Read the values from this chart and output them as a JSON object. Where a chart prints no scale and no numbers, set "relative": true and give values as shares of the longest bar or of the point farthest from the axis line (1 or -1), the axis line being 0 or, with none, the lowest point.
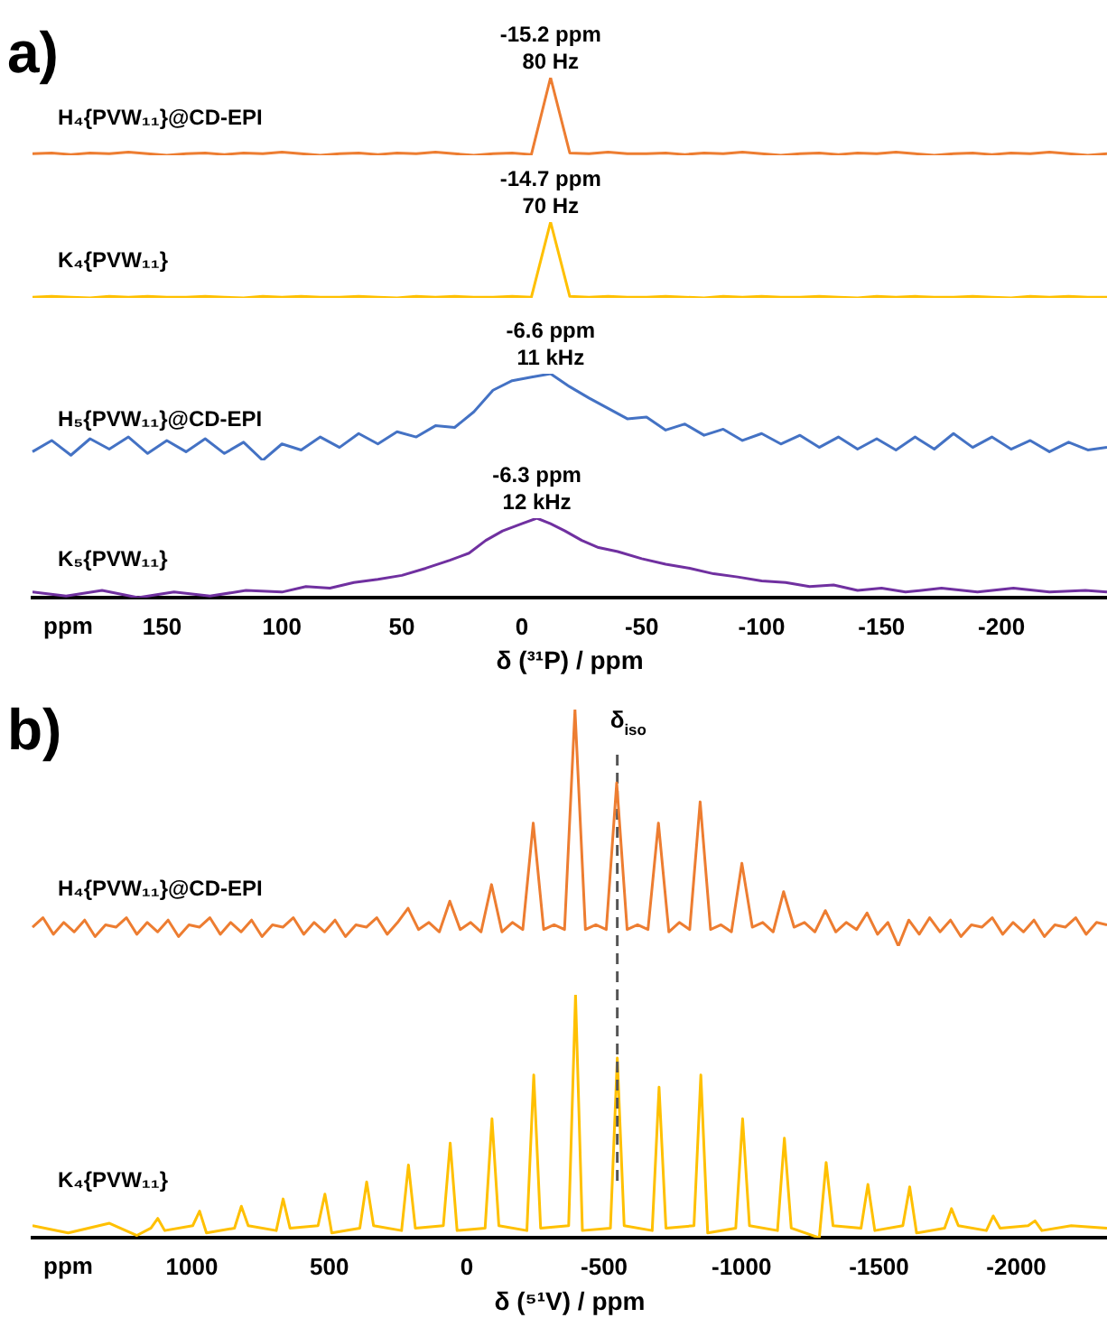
{
  "chart_data": [
    {
      "type": "line",
      "title": "a)",
      "relative": true,
      "tick_labels": false,
      "annotations": [
        "-15.2 ppm",
        "80 Hz"
      ],
      "categories": [
        null,
        null,
        null,
        null,
        null,
        null,
        null,
        null,
        null,
        null,
        null,
        null,
        null,
        null,
        null,
        null,
        null,
        null,
        null,
        null,
        null,
        null,
        null,
        null,
        null,
        null,
        null,
        null,
        null,
        null,
        null,
        null,
        null,
        null,
        null,
        null,
        null,
        null,
        null,
        null,
        null,
        null,
        null,
        null,
        null,
        null,
        null,
        null,
        null,
        null,
        null,
        null,
        null,
        null,
        null,
        null,
        null
      ],
      "series": [
        {
          "name": "H₄{PVW₁₁}@CD-EPI",
          "color": "#ed7d31",
          "values": [
            0.02,
            0.03,
            0.01,
            0.03,
            0.02,
            0.04,
            0.02,
            0,
            0.02,
            0.03,
            0.01,
            0.03,
            0.02,
            0.04,
            0.02,
            0,
            0.02,
            0.03,
            0.01,
            0.03,
            0.02,
            0.04,
            0.02,
            0,
            0.02,
            0.03,
            0.01,
            1,
            0.03,
            0.02,
            0.04,
            0.02,
            0.02,
            0.03,
            0.01,
            0.03,
            0.02,
            0.04,
            0.02,
            0,
            0.02,
            0.03,
            0.01,
            0.03,
            0.02,
            0.04,
            0.02,
            0,
            0.02,
            0.03,
            0.01,
            0.03,
            0.02,
            0.04,
            0.02,
            0,
            0.02
          ]
        }
      ]
    },
    {
      "type": "line",
      "relative": true,
      "tick_labels": false,
      "annotations": [
        "-14.7 ppm",
        "70 Hz"
      ],
      "categories": [
        null,
        null,
        null,
        null,
        null,
        null,
        null,
        null,
        null,
        null,
        null,
        null,
        null,
        null,
        null,
        null,
        null,
        null,
        null,
        null,
        null,
        null,
        null,
        null,
        null,
        null,
        null,
        null,
        null,
        null,
        null,
        null,
        null,
        null,
        null,
        null,
        null,
        null,
        null,
        null,
        null,
        null,
        null,
        null,
        null,
        null,
        null,
        null,
        null,
        null,
        null,
        null,
        null,
        null,
        null,
        null,
        null
      ],
      "series": [
        {
          "name": "K₄{PVW₁₁}",
          "color": "#ffc000",
          "values": [
            0.01,
            0.02,
            0.01,
            0,
            0.02,
            0.01,
            0.02,
            0.01,
            0.01,
            0.02,
            0.01,
            0,
            0.02,
            0.01,
            0.02,
            0.01,
            0.01,
            0.02,
            0.01,
            0,
            0.02,
            0.01,
            0.02,
            0.01,
            0.01,
            0.02,
            0.01,
            1,
            0.02,
            0.01,
            0.02,
            0.01,
            0.01,
            0.02,
            0.01,
            0,
            0.02,
            0.01,
            0.02,
            0.01,
            0.01,
            0.02,
            0.01,
            0,
            0.02,
            0.01,
            0.02,
            0.01,
            0.01,
            0.02,
            0.01,
            0,
            0.02,
            0.01,
            0.02,
            0.01,
            0.01
          ]
        }
      ]
    },
    {
      "type": "line",
      "relative": true,
      "tick_labels": false,
      "annotations": [
        "-6.6 ppm",
        "11 kHz"
      ],
      "categories": [
        null,
        null,
        null,
        null,
        null,
        null,
        null,
        null,
        null,
        null,
        null,
        null,
        null,
        null,
        null,
        null,
        null,
        null,
        null,
        null,
        null,
        null,
        null,
        null,
        null,
        null,
        null,
        null,
        null,
        null,
        null,
        null,
        null,
        null,
        null,
        null,
        null,
        null,
        null,
        null,
        null,
        null,
        null,
        null,
        null,
        null,
        null,
        null,
        null,
        null,
        null,
        null,
        null,
        null,
        null,
        null,
        null
      ],
      "series": [
        {
          "name": "H₅{PVW₁₁}@CD-EPI",
          "color": "#4472c4",
          "values": [
            0.1,
            0.23,
            0.06,
            0.25,
            0.13,
            0.27,
            0.08,
            0.23,
            0.1,
            0.25,
            0.08,
            0.21,
            0,
            0.19,
            0.12,
            0.27,
            0.15,
            0.31,
            0.19,
            0.33,
            0.27,
            0.4,
            0.38,
            0.56,
            0.81,
            0.92,
            0.96,
            1,
            0.85,
            0.72,
            0.6,
            0.48,
            0.5,
            0.35,
            0.42,
            0.29,
            0.36,
            0.23,
            0.31,
            0.19,
            0.29,
            0.15,
            0.27,
            0.13,
            0.25,
            0.12,
            0.27,
            0.13,
            0.31,
            0.15,
            0.27,
            0.13,
            0.23,
            0.1,
            0.21,
            0.12,
            0.15
          ]
        }
      ]
    },
    {
      "type": "line",
      "relative": true,
      "xlim": [
        204,
        -244
      ],
      "xticks": [
        150,
        100,
        50,
        0,
        -50,
        -100,
        -150,
        -200
      ],
      "xlabel": "δ (³¹P) / ppm",
      "annotations": [
        {
          "text": "-6.3 ppm",
          "x": -6.3,
          "y": 1
        },
        {
          "text": "12 kHz",
          "x": -6.3,
          "y": 1
        },
        "ppm"
      ],
      "series": [
        {
          "name": "K₅{PVW₁₁}",
          "color": "#7030a0",
          "x": [
            204,
            190,
            175,
            160,
            145,
            130,
            115,
            100,
            90,
            80,
            70,
            60,
            50,
            40,
            30,
            22,
            15,
            8,
            0,
            -6.3,
            -12,
            -18,
            -25,
            -32,
            -40,
            -50,
            -60,
            -70,
            -80,
            -90,
            -100,
            -110,
            -120,
            -130,
            -140,
            -150,
            -160,
            -175,
            -190,
            -205,
            -220,
            -235,
            -244
          ],
          "values": [
            0.07,
            0.02,
            0.09,
            0,
            0.07,
            0.02,
            0.09,
            0.07,
            0.14,
            0.12,
            0.19,
            0.23,
            0.28,
            0.37,
            0.47,
            0.56,
            0.72,
            0.84,
            0.93,
            1,
            0.93,
            0.84,
            0.72,
            0.63,
            0.58,
            0.49,
            0.42,
            0.37,
            0.3,
            0.26,
            0.21,
            0.19,
            0.14,
            0.16,
            0.09,
            0.12,
            0.07,
            0.12,
            0.07,
            0.12,
            0.07,
            0.09,
            0.07
          ]
        }
      ]
    },
    {
      "type": "line",
      "title": "b)",
      "relative": true,
      "tick_labels": false,
      "categories": [
        null,
        null,
        null,
        null,
        null,
        null,
        null,
        null,
        null,
        null,
        null,
        null,
        null,
        null,
        null,
        null,
        null,
        null,
        null,
        null,
        null,
        null,
        null,
        null,
        null,
        null,
        null,
        null,
        null,
        null,
        null,
        null,
        null,
        null,
        null,
        null,
        null,
        null,
        null,
        null,
        null,
        null,
        null,
        null,
        null,
        null,
        null,
        null,
        null,
        null,
        null,
        null,
        null,
        null,
        null,
        null,
        null,
        null,
        null,
        null,
        null,
        null,
        null,
        null,
        null,
        null,
        null,
        null,
        null,
        null,
        null,
        null,
        null,
        null,
        null,
        null,
        null,
        null,
        null,
        null,
        null,
        null,
        null,
        null,
        null,
        null,
        null,
        null,
        null,
        null,
        null,
        null,
        null,
        null,
        null,
        null,
        null,
        null,
        null,
        null,
        null,
        null,
        null,
        null
      ],
      "series": [
        {
          "name": "H₄{PVW₁₁}@CD-EPI",
          "color": "#ed7d31",
          "values": [
            0.08,
            0.12,
            0.05,
            0.1,
            0.06,
            0.11,
            0.04,
            0.09,
            0.08,
            0.12,
            0.05,
            0.1,
            0.06,
            0.11,
            0.04,
            0.09,
            0.08,
            0.12,
            0.05,
            0.1,
            0.06,
            0.11,
            0.04,
            0.09,
            0.08,
            0.12,
            0.05,
            0.1,
            0.06,
            0.11,
            0.04,
            0.09,
            0.08,
            0.12,
            0.05,
            0.1,
            0.16,
            0.07,
            0.1,
            0.06,
            0.19,
            0.07,
            0.1,
            0.06,
            0.26,
            0.06,
            0.1,
            0.07,
            0.52,
            0.07,
            0.09,
            0.07,
            1,
            0.07,
            0.09,
            0.07,
            0.69,
            0.07,
            0.09,
            0.07,
            0.52,
            0.06,
            0.1,
            0.07,
            0.61,
            0.07,
            0.09,
            0.06,
            0.35,
            0.08,
            0.1,
            0.06,
            0.23,
            0.08,
            0.1,
            0.06,
            0.15,
            0.06,
            0.1,
            0.07,
            0.14,
            0.05,
            0.1,
            0,
            0.11,
            0.05,
            0.12,
            0.06,
            0.11,
            0.04,
            0.09,
            0.08,
            0.12,
            0.05,
            0.1,
            0.06,
            0.11,
            0.04,
            0.09,
            0.08,
            0.12,
            0.05,
            0.1,
            0.09
          ]
        }
      ]
    },
    {
      "type": "line",
      "relative": true,
      "xlim": [
        1580,
        -2330
      ],
      "xticks": [
        1000,
        500,
        0,
        -500,
        -1000,
        -1500,
        -2000
      ],
      "xlabel": "δ (⁵¹V) / ppm",
      "annotations": [
        "ppm"
      ],
      "ref_lines": [
        {
          "axis": "x",
          "value": -548,
          "label": "δ$_{iso}$",
          "color": "#555555",
          "line_style": "dashed"
        }
      ],
      "series": [
        {
          "name": "K₄{PVW₁₁}",
          "color": "#ffc000",
          "x": [
            1580,
            1450,
            1300,
            1200,
            1149,
            1124,
            1099,
            997,
            972,
            947,
            845,
            820,
            795,
            693,
            668,
            643,
            541,
            516,
            491,
            389,
            364,
            339,
            237,
            212,
            187,
            85,
            60,
            35,
            -67,
            -92,
            -117,
            -219,
            -244,
            -269,
            -371,
            -396,
            -421,
            -523,
            -548,
            -573,
            -675,
            -700,
            -725,
            -827,
            -852,
            -877,
            -979,
            -1004,
            -1029,
            -1131,
            -1156,
            -1181,
            -1283,
            -1308,
            -1333,
            -1435,
            -1460,
            -1485,
            -1587,
            -1612,
            -1637,
            -1739,
            -1764,
            -1789,
            -1891,
            -1916,
            -1941,
            -2043,
            -2068,
            -2093,
            -2200,
            -2330
          ],
          "values": [
            0.05,
            0.02,
            0.06,
            0.01,
            0.04,
            0.08,
            0.03,
            0.05,
            0.11,
            0.02,
            0.04,
            0.13,
            0.05,
            0.03,
            0.16,
            0.04,
            0.05,
            0.18,
            0.02,
            0.04,
            0.23,
            0.05,
            0.03,
            0.3,
            0.04,
            0.05,
            0.39,
            0.03,
            0.04,
            0.49,
            0.05,
            0.03,
            0.67,
            0.04,
            0.05,
            1,
            0.03,
            0.04,
            0.74,
            0.05,
            0.03,
            0.62,
            0.04,
            0.05,
            0.67,
            0.02,
            0.04,
            0.49,
            0.05,
            0.03,
            0.41,
            0.04,
            0,
            0.31,
            0.05,
            0.04,
            0.22,
            0.03,
            0.05,
            0.21,
            0.02,
            0.04,
            0.12,
            0.05,
            0.03,
            0.09,
            0.04,
            0.05,
            0.07,
            0.03,
            0.05,
            0.04
          ]
        }
      ]
    }
  ]
}
